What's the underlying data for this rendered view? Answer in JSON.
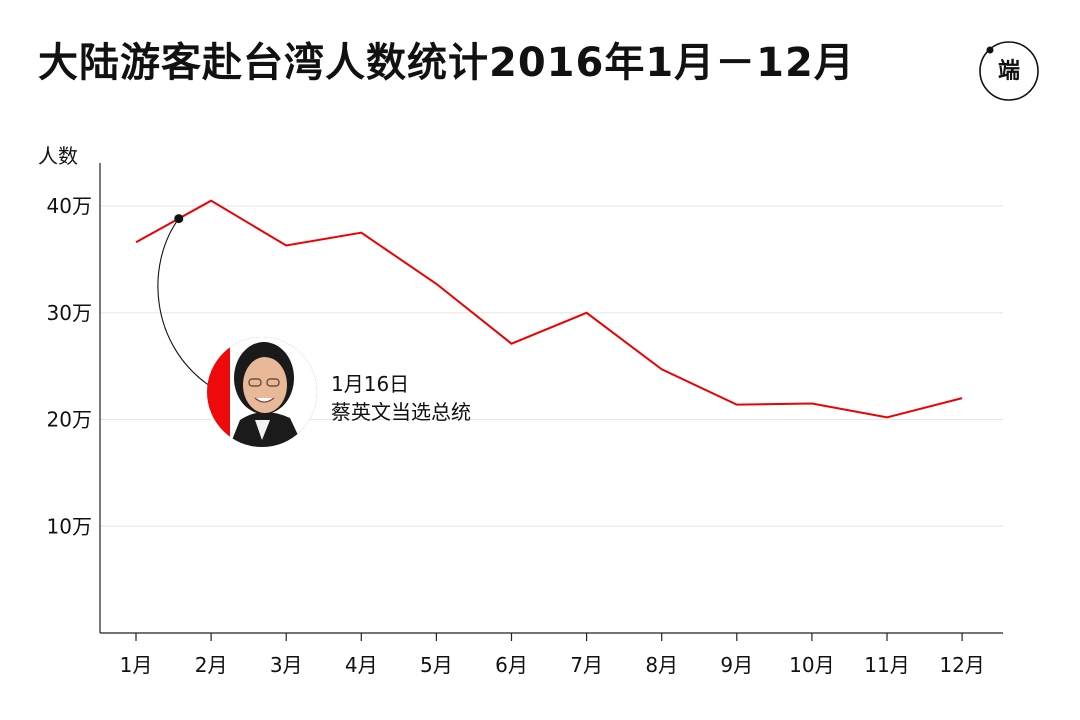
{
  "chart_data": {
    "type": "line",
    "title": "大陆游客赴台湾人数统计2016年1月－12月",
    "ylabel": "人数",
    "xlabel": "",
    "categories": [
      "1月",
      "2月",
      "3月",
      "4月",
      "5月",
      "6月",
      "7月",
      "8月",
      "9月",
      "10月",
      "11月",
      "12月"
    ],
    "series": [
      {
        "values": [
          366000,
          405000,
          363000,
          375000,
          327000,
          271000,
          300000,
          247000,
          214000,
          215000,
          202000,
          220000
        ]
      }
    ],
    "ylim": [
      0,
      400000
    ],
    "yticks": [
      100000,
      200000,
      300000,
      400000
    ],
    "ytick_labels": [
      "10万",
      "20万",
      "30万",
      "40万"
    ],
    "grid": true,
    "line_color": "#ee0000",
    "annotation": {
      "date": "1月16日",
      "text": "蔡英文当选总统",
      "position": 1.57
    }
  },
  "brand": {
    "logo_icon": "duan-logo-icon",
    "logo_text": "端"
  }
}
